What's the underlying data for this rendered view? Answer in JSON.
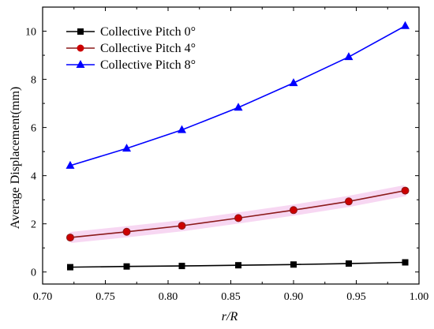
{
  "chart_data": {
    "type": "line",
    "xlabel": "r/R",
    "ylabel": "Average Displacement(mm)",
    "xlim": [
      0.7,
      1.0
    ],
    "ylim": [
      -0.5,
      11.0
    ],
    "x_ticks": [
      "0.70",
      "0.75",
      "0.80",
      "0.85",
      "0.90",
      "0.95",
      "1.00"
    ],
    "y_ticks": [
      "0",
      "2",
      "4",
      "6",
      "8",
      "10"
    ],
    "legend_position": "top-left",
    "grid": false,
    "x": [
      0.722,
      0.767,
      0.811,
      0.856,
      0.9,
      0.944,
      0.989
    ],
    "series": [
      {
        "name": "Collective Pitch 0°",
        "color": "#000000",
        "marker": "square",
        "values": [
          0.2,
          0.23,
          0.25,
          0.28,
          0.31,
          0.35,
          0.4
        ]
      },
      {
        "name": "Collective Pitch 4°",
        "color": "#cc0000",
        "marker": "circle",
        "values": [
          1.43,
          1.67,
          1.92,
          2.24,
          2.57,
          2.93,
          3.38
        ]
      },
      {
        "name": "Collective Pitch 8°",
        "color": "#0000ff",
        "marker": "triangle",
        "values": [
          4.42,
          5.13,
          5.9,
          6.83,
          7.85,
          8.93,
          10.22
        ]
      }
    ]
  }
}
